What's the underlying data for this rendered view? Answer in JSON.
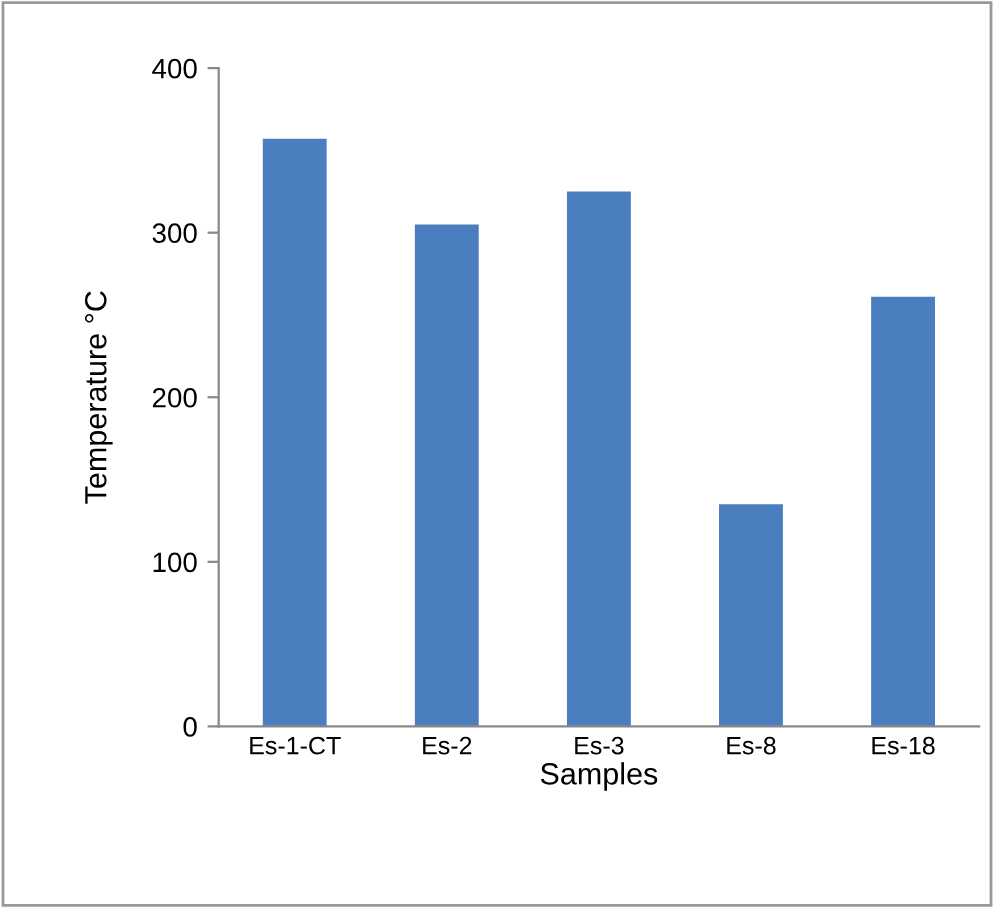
{
  "chart_data": {
    "type": "bar",
    "xlabel": "Samples",
    "ylabel": "Temperature °C",
    "categories": [
      "Es-1-CT",
      "Es-2",
      "Es-3",
      "Es-8",
      "Es-18"
    ],
    "values": [
      357,
      305,
      325,
      135,
      261
    ],
    "color": "#4a7ebf",
    "ylim": [
      0,
      400
    ],
    "yticks": [
      0,
      100,
      200,
      300,
      400
    ],
    "grid": false,
    "legend": false
  }
}
